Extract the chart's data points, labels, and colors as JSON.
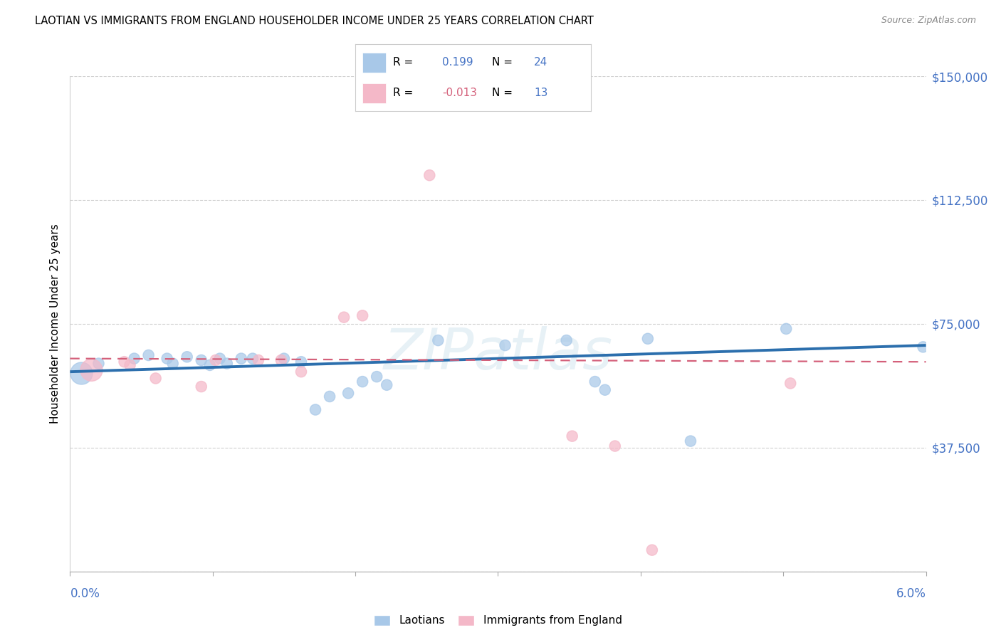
{
  "title": "LAOTIAN VS IMMIGRANTS FROM ENGLAND HOUSEHOLDER INCOME UNDER 25 YEARS CORRELATION CHART",
  "source": "Source: ZipAtlas.com",
  "ylabel": "Householder Income Under 25 years",
  "xlim": [
    0.0,
    0.06
  ],
  "ylim": [
    0,
    150000
  ],
  "yticks": [
    0,
    37500,
    75000,
    112500,
    150000
  ],
  "ytick_labels": [
    "",
    "$37,500",
    "$75,000",
    "$112,500",
    "$150,000"
  ],
  "legend_blue_R": "0.199",
  "legend_blue_N": "24",
  "legend_pink_R": "-0.013",
  "legend_pink_N": "13",
  "blue_fill": "#a8c8e8",
  "blue_line": "#2c6fad",
  "pink_fill": "#f4b8c8",
  "pink_line": "#d4607a",
  "label_color": "#4472c4",
  "grid_color": "#d0d0d0",
  "blue_points": [
    [
      0.0008,
      60000
    ],
    [
      0.002,
      63000
    ],
    [
      0.0045,
      64500
    ],
    [
      0.0055,
      65500
    ],
    [
      0.0068,
      64500
    ],
    [
      0.0072,
      63000
    ],
    [
      0.0082,
      65000
    ],
    [
      0.0092,
      64000
    ],
    [
      0.0098,
      62500
    ],
    [
      0.0105,
      64500
    ],
    [
      0.011,
      63000
    ],
    [
      0.012,
      64500
    ],
    [
      0.0128,
      64500
    ],
    [
      0.015,
      64500
    ],
    [
      0.0162,
      63500
    ],
    [
      0.0172,
      49000
    ],
    [
      0.0182,
      53000
    ],
    [
      0.0195,
      54000
    ],
    [
      0.0205,
      57500
    ],
    [
      0.0215,
      59000
    ],
    [
      0.0222,
      56500
    ],
    [
      0.0258,
      70000
    ],
    [
      0.0305,
      68500
    ],
    [
      0.0348,
      70000
    ],
    [
      0.0368,
      57500
    ],
    [
      0.0375,
      55000
    ],
    [
      0.0405,
      70500
    ],
    [
      0.0435,
      39500
    ],
    [
      0.0502,
      73500
    ],
    [
      0.0598,
      68000
    ]
  ],
  "blue_sizes": [
    500,
    120,
    120,
    120,
    120,
    120,
    120,
    120,
    120,
    120,
    120,
    120,
    120,
    120,
    120,
    120,
    120,
    120,
    120,
    120,
    120,
    120,
    120,
    120,
    120,
    120,
    120,
    120,
    120,
    120
  ],
  "pink_points": [
    [
      0.0015,
      61000
    ],
    [
      0.0038,
      63500
    ],
    [
      0.0042,
      62500
    ],
    [
      0.006,
      58500
    ],
    [
      0.0092,
      56000
    ],
    [
      0.0102,
      64000
    ],
    [
      0.0132,
      64000
    ],
    [
      0.0148,
      64000
    ],
    [
      0.0162,
      60500
    ],
    [
      0.0192,
      77000
    ],
    [
      0.0205,
      77500
    ],
    [
      0.0252,
      120000
    ],
    [
      0.0352,
      41000
    ],
    [
      0.0382,
      38000
    ],
    [
      0.0408,
      6500
    ],
    [
      0.0505,
      57000
    ]
  ],
  "pink_sizes": [
    500,
    120,
    120,
    120,
    120,
    120,
    120,
    120,
    120,
    120,
    120,
    120,
    120,
    120,
    120,
    120
  ],
  "blue_trend_x": [
    0.0,
    0.06
  ],
  "blue_trend_y": [
    60500,
    68500
  ],
  "pink_trend_x": [
    0.0,
    0.06
  ],
  "pink_trend_y": [
    64500,
    63500
  ]
}
